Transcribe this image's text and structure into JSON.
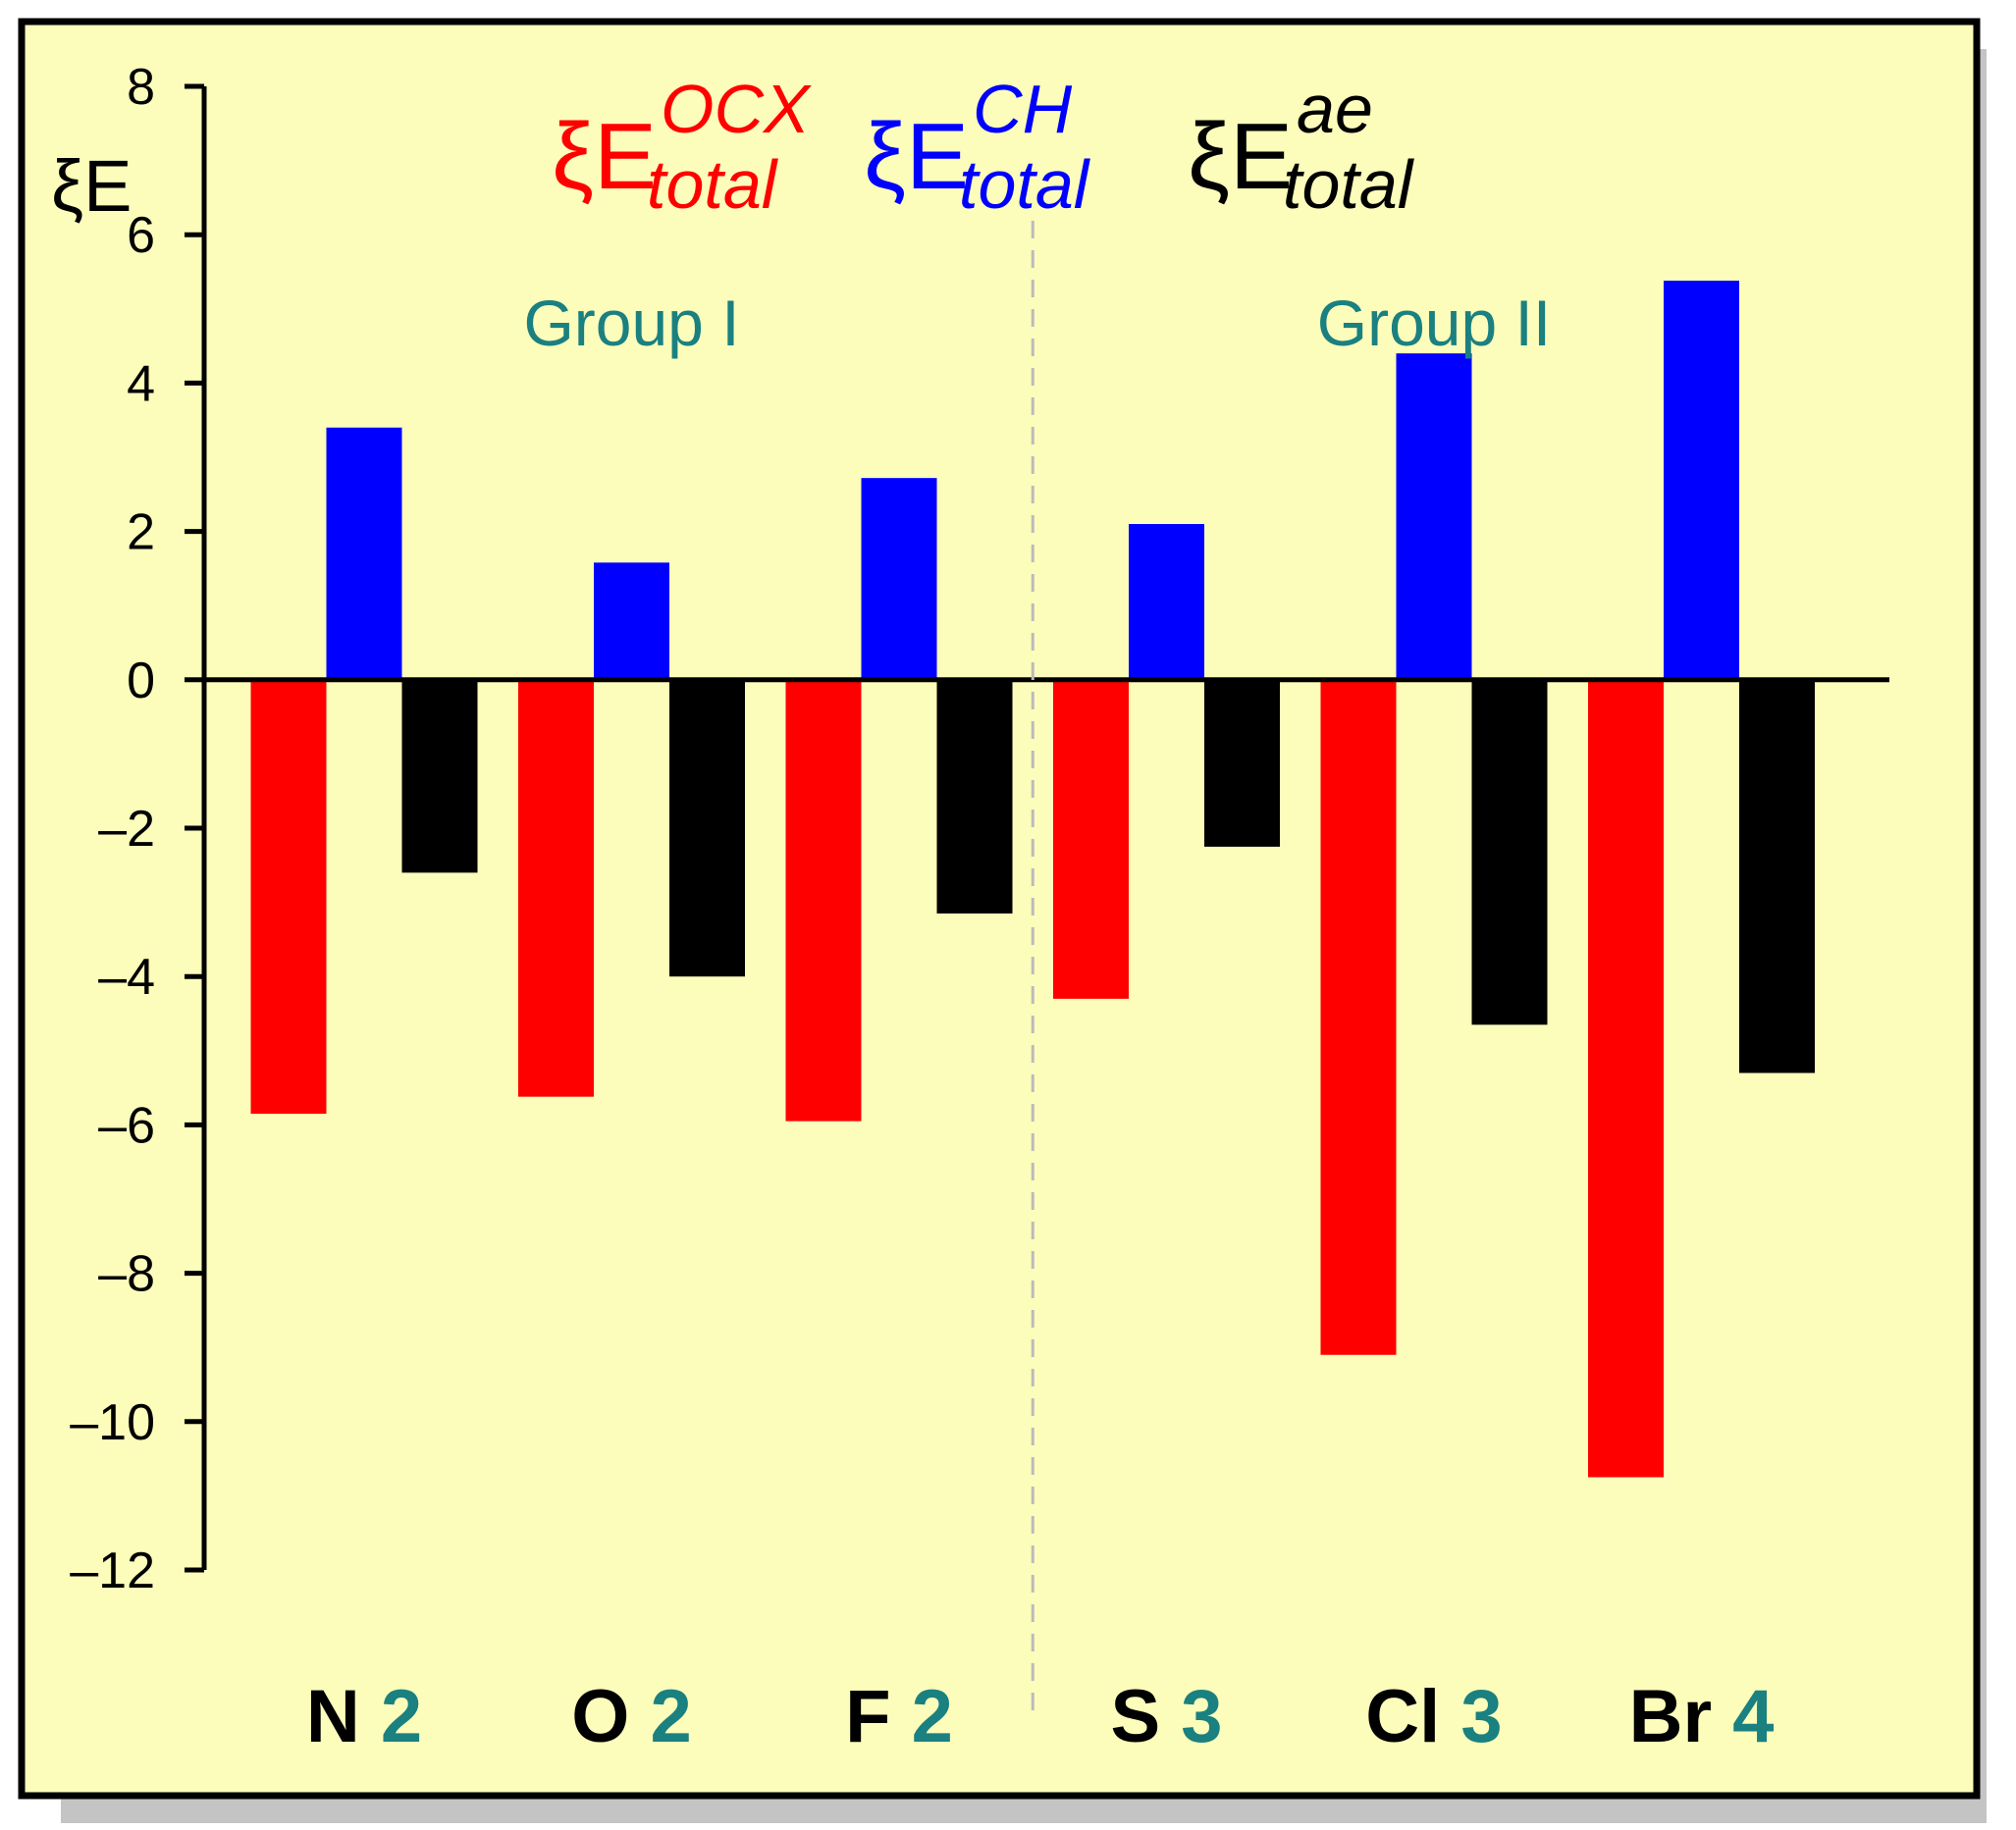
{
  "chart_data": {
    "type": "bar",
    "ylabel": "ξE",
    "ylim": [
      -12,
      8
    ],
    "yticks": [
      8,
      6,
      4,
      2,
      0,
      -2,
      -4,
      -6,
      -8,
      -10,
      -12
    ],
    "ytick_labels": [
      "8",
      "6",
      "4",
      "2",
      "0",
      "–2",
      "–4",
      "–6",
      "–8",
      "–10",
      "–12"
    ],
    "categories": [
      {
        "element": "N",
        "number": "2"
      },
      {
        "element": "O",
        "number": "2"
      },
      {
        "element": "F",
        "number": "2"
      },
      {
        "element": "S",
        "number": "3"
      },
      {
        "element": "Cl",
        "number": "3"
      },
      {
        "element": "Br",
        "number": "4"
      }
    ],
    "groups": [
      {
        "label": "Group I",
        "categories": [
          "N",
          "O",
          "F"
        ]
      },
      {
        "label": "Group II",
        "categories": [
          "S",
          "Cl",
          "Br"
        ]
      }
    ],
    "series": [
      {
        "legend": {
          "base": "ξE",
          "sub": "total",
          "sup": "OCX"
        },
        "color": "#ff0000",
        "values": [
          -5.85,
          -5.62,
          -5.95,
          -4.3,
          -9.1,
          -10.75
        ]
      },
      {
        "legend": {
          "base": "ξE",
          "sub": "total",
          "sup": "CH"
        },
        "color": "#0000ff",
        "values": [
          3.4,
          1.58,
          2.72,
          2.1,
          4.4,
          5.38
        ]
      },
      {
        "legend": {
          "base": "ξE",
          "sub": "total",
          "sup": "ae"
        },
        "color": "#000000",
        "values": [
          -2.6,
          -4.0,
          -3.15,
          -2.25,
          -4.65,
          -5.3
        ]
      }
    ],
    "legend_position": "top",
    "background": "#fcfcbb",
    "grid": false
  }
}
